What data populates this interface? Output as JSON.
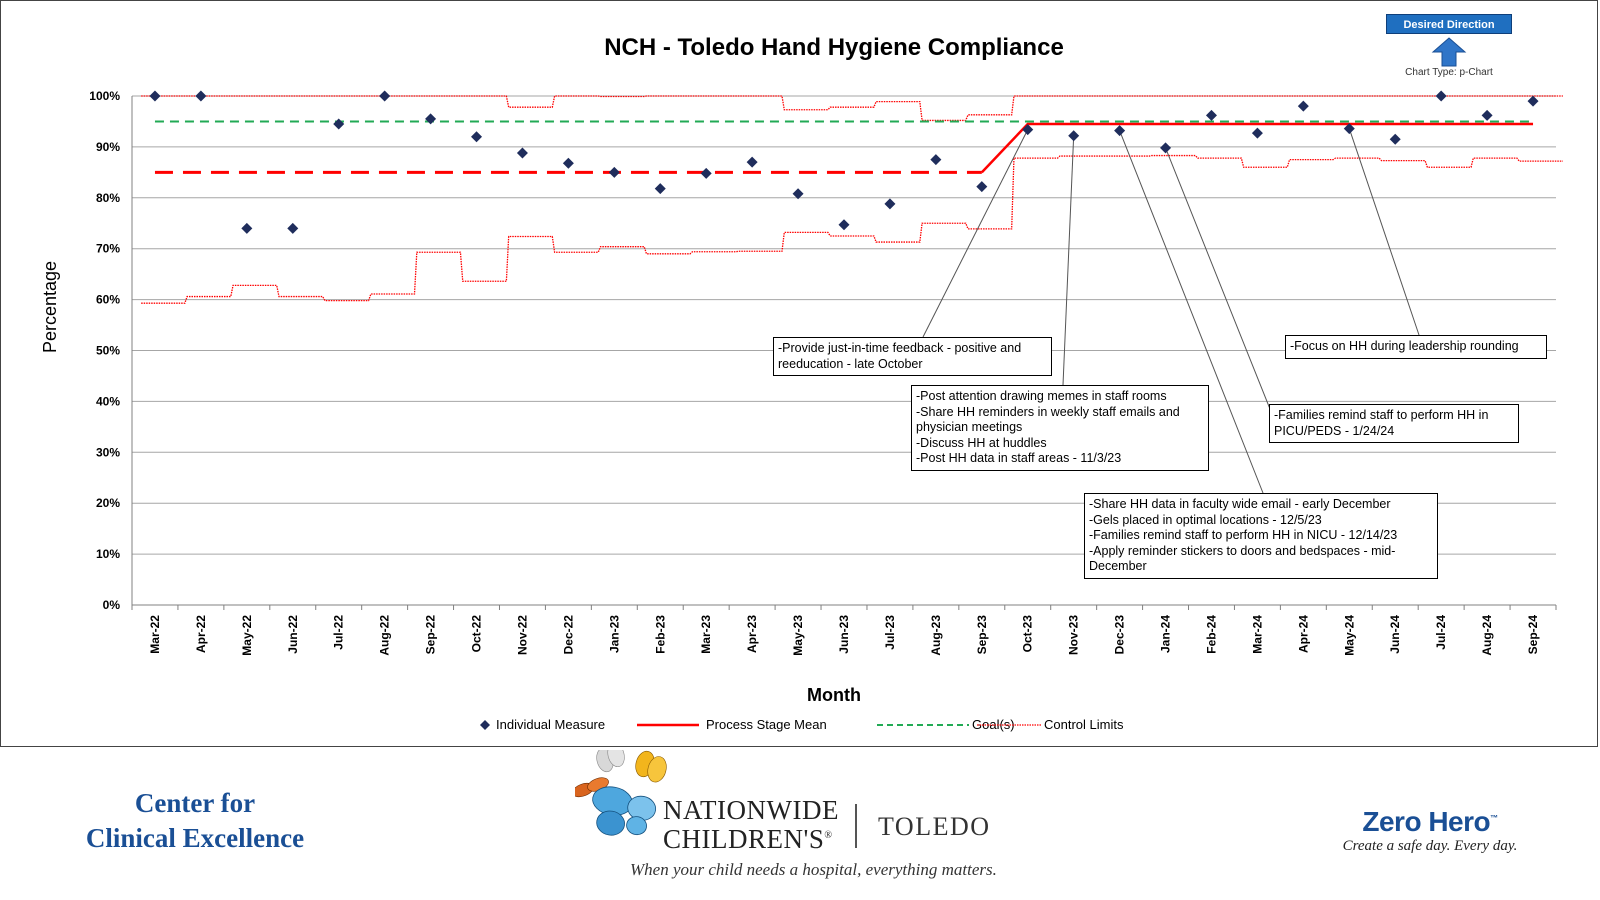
{
  "chart_data": {
    "type": "line",
    "title": "NCH - Toledo Hand Hygiene Compliance",
    "xlabel": "Month",
    "ylabel": "Percentage",
    "ylim": [
      0,
      100
    ],
    "y_ticks": [
      "0%",
      "10%",
      "20%",
      "30%",
      "40%",
      "50%",
      "60%",
      "70%",
      "80%",
      "90%",
      "100%"
    ],
    "grid": true,
    "legend_position": "bottom",
    "categories": [
      "Mar-22",
      "Apr-22",
      "May-22",
      "Jun-22",
      "Jul-22",
      "Aug-22",
      "Sep-22",
      "Oct-22",
      "Nov-22",
      "Dec-22",
      "Jan-23",
      "Feb-23",
      "Mar-23",
      "Apr-23",
      "May-23",
      "Jun-23",
      "Jul-23",
      "Aug-23",
      "Sep-23",
      "Oct-23",
      "Nov-23",
      "Dec-23",
      "Jan-24",
      "Feb-24",
      "Mar-24",
      "Apr-24",
      "May-24",
      "Jun-24",
      "Jul-24",
      "Aug-24",
      "Sep-24"
    ],
    "series": [
      {
        "name": "Individual Measure",
        "style": "marker-diamond",
        "color": "#1f2d5c",
        "values": [
          100,
          100,
          74,
          74,
          94.5,
          100,
          95.5,
          92,
          88.8,
          86.8,
          85,
          81.8,
          84.8,
          87,
          80.8,
          74.7,
          78.8,
          87.5,
          82.2,
          93.4,
          92.2,
          93.2,
          89.8,
          96.2,
          92.7,
          98,
          93.6,
          91.5,
          100,
          96.2,
          99
        ]
      },
      {
        "name": "Process Stage Mean",
        "style": "solid",
        "color": "#ff0000",
        "values": [
          85,
          85,
          85,
          85,
          85,
          85,
          85,
          85,
          85,
          85,
          85,
          85,
          85,
          85,
          85,
          85,
          85,
          85,
          85,
          94.5,
          94.5,
          94.5,
          94.5,
          94.5,
          94.5,
          94.5,
          94.5,
          94.5,
          94.5,
          94.5,
          94.5
        ],
        "stage1_dashed_through": "Sep-23"
      },
      {
        "name": "Goal(s)",
        "style": "dashed",
        "color": "#22aa55",
        "values": [
          95,
          95,
          95,
          95,
          95,
          95,
          95,
          95,
          95,
          95,
          95,
          95,
          95,
          95,
          95,
          95,
          95,
          95,
          95,
          95,
          95,
          95,
          95,
          95,
          95,
          95,
          95,
          95,
          95,
          95,
          95
        ]
      },
      {
        "name": "Control Limits",
        "style": "dotted-step",
        "color": "#ff0000",
        "ucl": [
          100,
          100,
          100,
          100,
          100,
          100,
          100,
          100,
          97.8,
          100,
          99.9,
          100,
          100,
          100,
          97.3,
          97.8,
          98.9,
          95.2,
          96.3,
          100,
          100,
          100,
          100,
          100,
          100,
          100,
          100,
          100,
          100,
          100,
          100
        ],
        "lcl": [
          59.3,
          60.6,
          62.8,
          60.6,
          59.8,
          61.1,
          69.3,
          63.6,
          72.4,
          69.3,
          70.4,
          69,
          69.4,
          69.5,
          73.2,
          72.5,
          71.3,
          75,
          73.9,
          87.8,
          88.2,
          88.2,
          88.3,
          87.8,
          86,
          87.5,
          87.8,
          87.3,
          86,
          87.8,
          87.2
        ]
      }
    ],
    "annotations": [
      {
        "text": "-Provide just-in-time feedback - positive and reeducation - late October",
        "target": "Oct-23"
      },
      {
        "text": "-Post attention drawing memes in staff rooms\n-Share HH reminders in weekly staff emails and physician meetings\n-Discuss HH at huddles\n-Post HH data in staff areas - 11/3/23",
        "target": "Nov-23"
      },
      {
        "text": "-Share HH data in faculty wide email - early December\n-Gels placed in optimal locations - 12/5/23\n-Families remind staff to perform HH in NICU - 12/14/23\n-Apply reminder stickers to doors and bedspaces - mid-December",
        "target": "Dec-23"
      },
      {
        "text": "-Families remind staff to perform HH in PICU/PEDS - 1/24/24",
        "target": "Jan-24"
      },
      {
        "text": "-Focus on HH during leadership rounding",
        "target": "May-24"
      }
    ]
  },
  "header": {
    "desired_direction_label": "Desired Direction",
    "chart_type_label": "Chart Type: p-Chart",
    "arrow_icon": "up-arrow-icon",
    "arrow_color": "#2f75c8"
  },
  "footer": {
    "left_line1": "Center for",
    "left_line2": "Clinical Excellence",
    "logo_line1": "NATIONWIDE",
    "logo_line2": "CHILDREN'S",
    "logo_registered": "®",
    "logo_location": "TOLEDO",
    "tagline": "When your child needs a hospital, everything matters.",
    "zero_hero_title": "Zero Hero",
    "zero_hero_tm": "™",
    "zero_hero_tagline": "Create a safe day. Every day.",
    "butterfly_icon": "butterflies-icon",
    "brand_blue": "#1a4f95"
  }
}
